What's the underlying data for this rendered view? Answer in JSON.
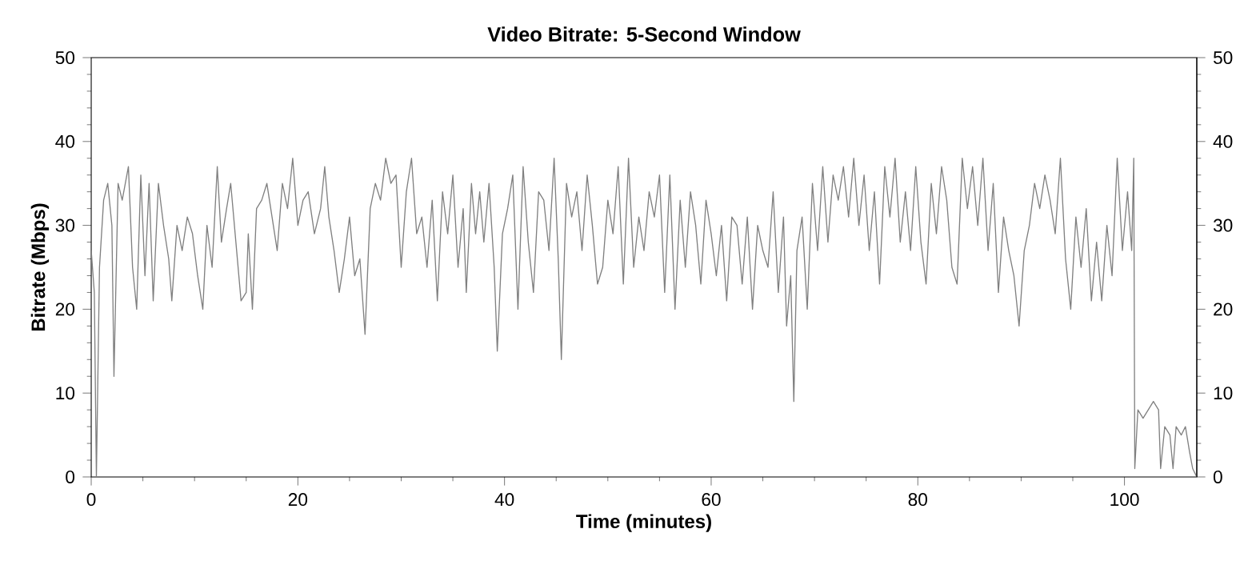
{
  "chart_data": {
    "type": "line",
    "title": "Video Bitrate: 5-Second Window",
    "xlabel": "Time (minutes)",
    "ylabel": "Bitrate (Mbps)",
    "x": [
      0,
      0.3,
      0.5,
      0.8,
      1.2,
      1.6,
      2.0,
      2.2,
      2.6,
      3.0,
      3.6,
      4.0,
      4.4,
      4.8,
      5.2,
      5.6,
      6.0,
      6.5,
      7.0,
      7.5,
      7.8,
      8.3,
      8.8,
      9.3,
      9.8,
      10.3,
      10.8,
      11.2,
      11.7,
      12.2,
      12.6,
      13.1,
      13.5,
      14.0,
      14.5,
      15.0,
      15.2,
      15.6,
      16.0,
      16.5,
      17.0,
      17.5,
      18.0,
      18.5,
      19.0,
      19.5,
      20.0,
      20.5,
      21.0,
      21.6,
      22.2,
      22.6,
      23.0,
      23.5,
      24.0,
      24.5,
      25.0,
      25.5,
      26.0,
      26.5,
      27.0,
      27.5,
      28.0,
      28.5,
      29.0,
      29.5,
      30.0,
      30.5,
      31.0,
      31.5,
      32.0,
      32.5,
      33.0,
      33.5,
      34.0,
      34.5,
      35.0,
      35.5,
      36.0,
      36.3,
      36.8,
      37.2,
      37.6,
      38.0,
      38.5,
      39.0,
      39.3,
      39.8,
      40.3,
      40.8,
      41.3,
      41.8,
      42.3,
      42.8,
      43.3,
      43.8,
      44.3,
      44.8,
      45.2,
      45.5,
      46.0,
      46.5,
      47.0,
      47.5,
      48.0,
      48.5,
      49.0,
      49.5,
      50.0,
      50.5,
      51.0,
      51.5,
      52.0,
      52.5,
      53.0,
      53.5,
      54.0,
      54.5,
      55.0,
      55.5,
      56.0,
      56.5,
      57.0,
      57.5,
      58.0,
      58.5,
      59.0,
      59.5,
      60.0,
      60.5,
      61.0,
      61.5,
      62.0,
      62.5,
      63.0,
      63.5,
      64.0,
      64.5,
      65.0,
      65.5,
      66.0,
      66.5,
      67.0,
      67.3,
      67.7,
      68.0,
      68.3,
      68.8,
      69.3,
      69.8,
      70.3,
      70.8,
      71.3,
      71.8,
      72.3,
      72.8,
      73.3,
      73.8,
      74.3,
      74.8,
      75.3,
      75.8,
      76.3,
      76.8,
      77.3,
      77.8,
      78.3,
      78.8,
      79.3,
      79.8,
      80.3,
      80.8,
      81.3,
      81.8,
      82.3,
      82.8,
      83.3,
      83.8,
      84.3,
      84.8,
      85.3,
      85.8,
      86.3,
      86.8,
      87.3,
      87.8,
      88.3,
      88.8,
      89.3,
      89.8,
      90.3,
      90.8,
      91.3,
      91.8,
      92.3,
      92.8,
      93.3,
      93.8,
      94.3,
      94.8,
      95.3,
      95.8,
      96.3,
      96.8,
      97.3,
      97.8,
      98.3,
      98.8,
      99.3,
      99.8,
      100.3,
      100.7,
      100.9,
      101.0,
      101.3,
      101.8,
      102.3,
      102.8,
      103.3,
      103.5,
      103.9,
      104.4,
      104.7,
      105.0,
      105.5,
      105.9,
      106.3,
      106.6,
      107.0
    ],
    "values": [
      27,
      22,
      0,
      25,
      33,
      35,
      30,
      12,
      35,
      33,
      37,
      25,
      20,
      36,
      24,
      35,
      21,
      35,
      30,
      26,
      21,
      30,
      27,
      31,
      29,
      24,
      20,
      30,
      25,
      37,
      28,
      32,
      35,
      28,
      21,
      22,
      29,
      20,
      32,
      33,
      35,
      31,
      27,
      35,
      32,
      38,
      30,
      33,
      34,
      29,
      32,
      37,
      31,
      27,
      22,
      26,
      31,
      24,
      26,
      17,
      32,
      35,
      33,
      38,
      35,
      36,
      25,
      34,
      38,
      29,
      31,
      25,
      33,
      21,
      34,
      29,
      36,
      25,
      32,
      22,
      35,
      29,
      34,
      28,
      35,
      25,
      15,
      29,
      32,
      36,
      20,
      37,
      28,
      22,
      34,
      33,
      27,
      38,
      26,
      14,
      35,
      31,
      34,
      27,
      36,
      30,
      23,
      25,
      33,
      29,
      37,
      23,
      38,
      25,
      31,
      27,
      34,
      31,
      36,
      22,
      36,
      20,
      33,
      25,
      34,
      30,
      23,
      33,
      29,
      24,
      30,
      21,
      31,
      30,
      23,
      31,
      20,
      30,
      27,
      25,
      34,
      22,
      31,
      18,
      24,
      9,
      27,
      31,
      20,
      35,
      27,
      37,
      28,
      36,
      33,
      37,
      31,
      38,
      30,
      36,
      27,
      34,
      23,
      37,
      31,
      38,
      28,
      34,
      27,
      37,
      28,
      23,
      35,
      29,
      37,
      33,
      25,
      23,
      38,
      32,
      37,
      30,
      38,
      27,
      35,
      22,
      31,
      27,
      24,
      18,
      27,
      30,
      35,
      32,
      36,
      33,
      29,
      38,
      26,
      20,
      31,
      25,
      32,
      21,
      28,
      21,
      30,
      24,
      38,
      27,
      34,
      27,
      38,
      1,
      8,
      7,
      8,
      9,
      8,
      1,
      6,
      5,
      1,
      6,
      5,
      6,
      3,
      1,
      0
    ],
    "color": "#808080",
    "xlim": [
      0,
      107
    ],
    "xticks": [
      0,
      20,
      40,
      60,
      80,
      100
    ],
    "ylim": [
      0,
      50
    ],
    "yticks": [
      0,
      10,
      20,
      30,
      40,
      50
    ],
    "y2lim": [
      0,
      50
    ],
    "y2ticks": [
      0,
      10,
      20,
      30,
      40,
      50
    ],
    "marker": "none",
    "line_style": "solid"
  }
}
